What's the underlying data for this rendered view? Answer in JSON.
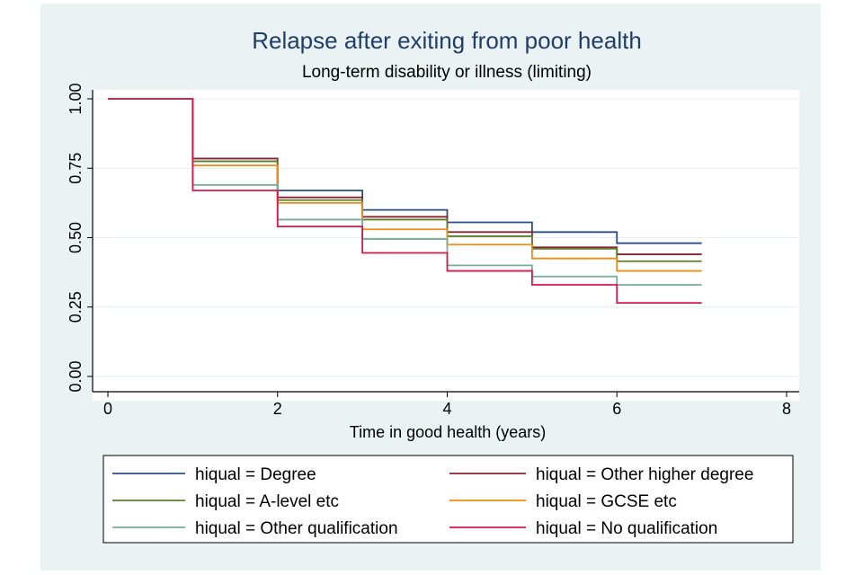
{
  "chart_data": {
    "type": "line",
    "step": true,
    "title": "Relapse after exiting from poor health",
    "subtitle": "Long-term disability or illness (limiting)",
    "xlabel": "Time in good health (years)",
    "ylabel": "",
    "xlim": [
      0,
      8
    ],
    "ylim": [
      0,
      1
    ],
    "xticks": [
      0,
      2,
      4,
      6,
      8
    ],
    "yticks": [
      0,
      0.25,
      0.5,
      0.75,
      1
    ],
    "xtick_labels": [
      "0",
      "2",
      "4",
      "6",
      "8"
    ],
    "ytick_labels": [
      "0.00",
      "0.25",
      "0.50",
      "0.75",
      "1.00"
    ],
    "grid": true,
    "legend_position": "bottom",
    "x": [
      0,
      1,
      2,
      3,
      4,
      5,
      6,
      7
    ],
    "series": [
      {
        "name": "hiqual = Degree",
        "color": "#2a4f86",
        "values": [
          1.0,
          0.775,
          0.67,
          0.6,
          0.555,
          0.52,
          0.48,
          0.48
        ]
      },
      {
        "name": "hiqual = Other higher degree",
        "color": "#8b2232",
        "values": [
          1.0,
          0.785,
          0.645,
          0.575,
          0.52,
          0.465,
          0.44,
          0.44
        ]
      },
      {
        "name": "hiqual = A-level etc",
        "color": "#5c7f2e",
        "values": [
          1.0,
          0.775,
          0.635,
          0.565,
          0.505,
          0.46,
          0.415,
          0.415
        ]
      },
      {
        "name": "hiqual = GCSE etc",
        "color": "#ee8c14",
        "values": [
          1.0,
          0.76,
          0.625,
          0.53,
          0.475,
          0.425,
          0.38,
          0.38
        ]
      },
      {
        "name": "hiqual = Other qualification",
        "color": "#79ab9a",
        "values": [
          1.0,
          0.69,
          0.565,
          0.495,
          0.4,
          0.36,
          0.33,
          0.33
        ]
      },
      {
        "name": "hiqual = No qualification",
        "color": "#d6184c",
        "values": [
          1.0,
          0.67,
          0.54,
          0.445,
          0.38,
          0.33,
          0.265,
          0.265
        ]
      }
    ]
  }
}
